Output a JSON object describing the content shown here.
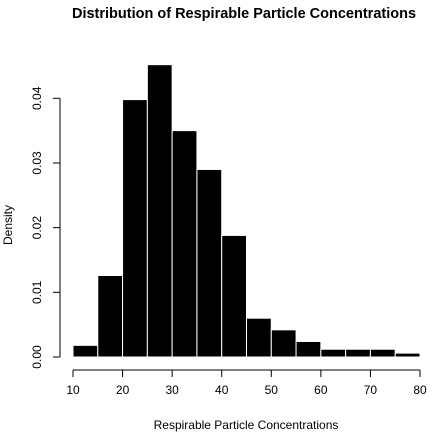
{
  "chart_data": {
    "type": "bar",
    "histogram": true,
    "title": "Distribution of Respirable Particle Concentrations",
    "xlabel": "Respirable Particle Concentrations",
    "ylabel": "Density",
    "bins": [
      {
        "from": 10,
        "to": 15,
        "density": 0.0018
      },
      {
        "from": 15,
        "to": 20,
        "density": 0.0126
      },
      {
        "from": 20,
        "to": 25,
        "density": 0.0398
      },
      {
        "from": 25,
        "to": 30,
        "density": 0.0452
      },
      {
        "from": 30,
        "to": 35,
        "density": 0.035
      },
      {
        "from": 35,
        "to": 40,
        "density": 0.029
      },
      {
        "from": 40,
        "to": 45,
        "density": 0.0188
      },
      {
        "from": 45,
        "to": 50,
        "density": 0.006
      },
      {
        "from": 50,
        "to": 55,
        "density": 0.0042
      },
      {
        "from": 55,
        "to": 60,
        "density": 0.0024
      },
      {
        "from": 60,
        "to": 65,
        "density": 0.0012
      },
      {
        "from": 65,
        "to": 70,
        "density": 0.0012
      },
      {
        "from": 70,
        "to": 75,
        "density": 0.0012
      },
      {
        "from": 75,
        "to": 80,
        "density": 0.0006
      }
    ],
    "xlim": [
      10,
      80
    ],
    "ylim": [
      0,
      0.046
    ],
    "x_ticks": [
      10,
      20,
      30,
      40,
      50,
      60,
      70,
      80
    ],
    "x_tick_labels": [
      "10",
      "20",
      "30",
      "40",
      "50",
      "60",
      "70",
      "80"
    ],
    "y_ticks": [
      0.0,
      0.01,
      0.02,
      0.03,
      0.04
    ],
    "y_tick_labels": [
      "0.00",
      "0.01",
      "0.02",
      "0.03",
      "0.04"
    ],
    "bar_color": "#000000",
    "bar_border_color": "#ffffff",
    "grid": false,
    "legend": "none"
  }
}
